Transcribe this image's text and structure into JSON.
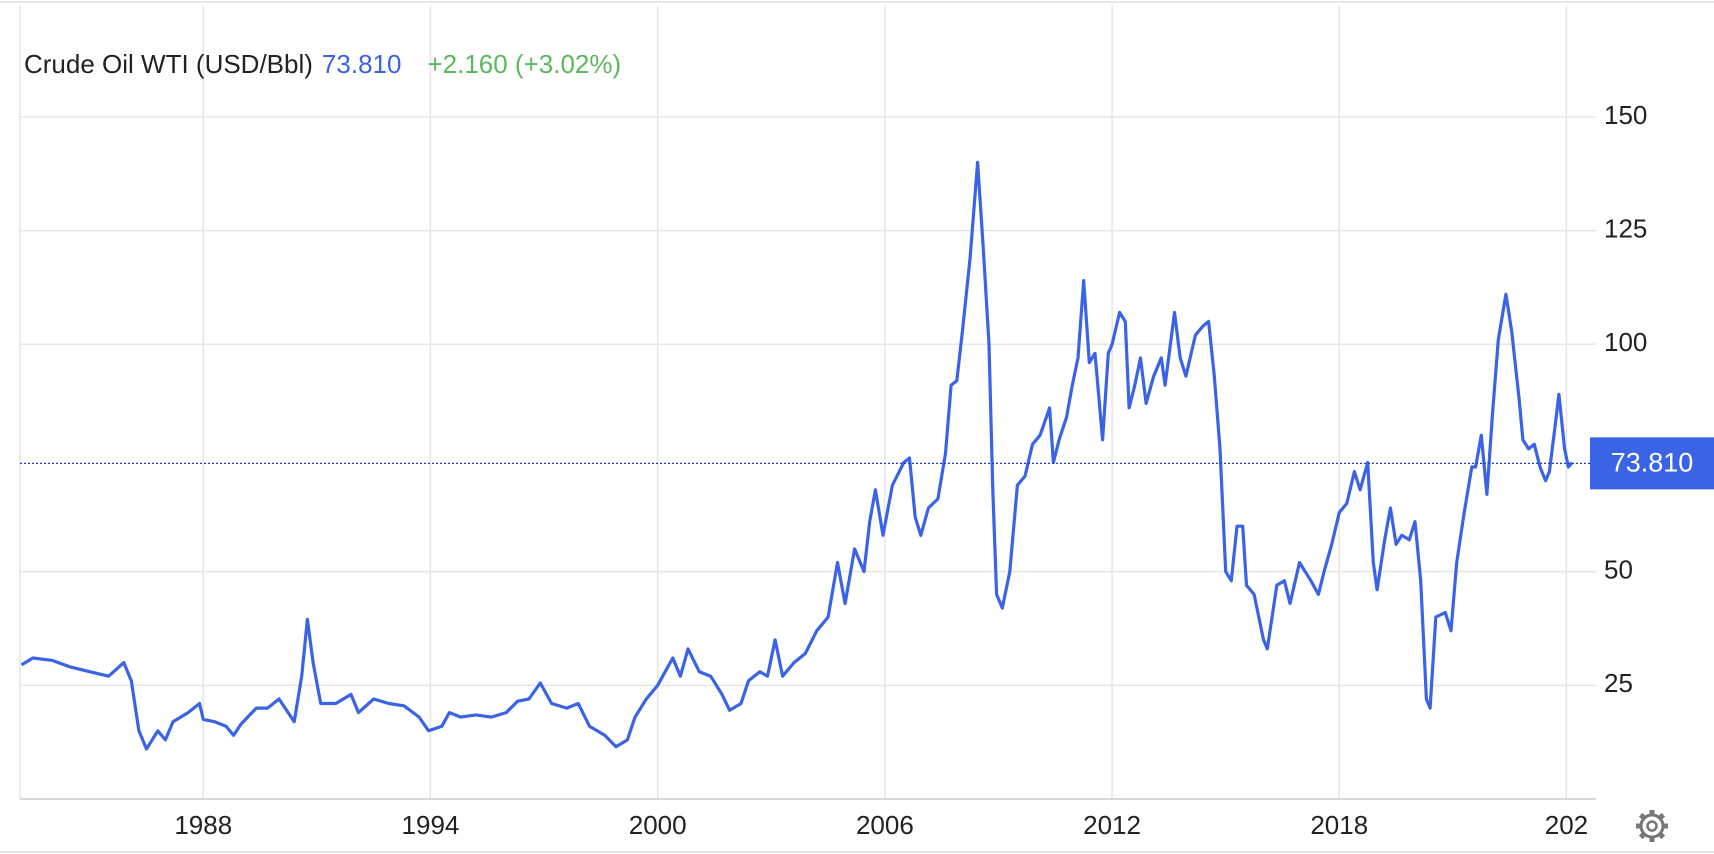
{
  "chart_data": {
    "type": "line",
    "title": "Crude Oil WTI (USD/Bbl)",
    "change": "+2.160 (+3.02%)",
    "last": {
      "value": 73.81,
      "label": "73.810"
    },
    "series": [
      {
        "name": "Crude Oil WTI",
        "color": "#3b63e6",
        "x": [
          1983.2,
          1983.5,
          1984,
          1984.5,
          1985,
          1985.5,
          1985.9,
          1986.1,
          1986.3,
          1986.5,
          1986.8,
          1987.0,
          1987.2,
          1987.6,
          1987.9,
          1988.0,
          1988.3,
          1988.6,
          1988.8,
          1989.0,
          1989.4,
          1989.7,
          1990.0,
          1990.4,
          1990.6,
          1990.75,
          1990.9,
          1991.1,
          1991.5,
          1991.9,
          1992.1,
          1992.5,
          1992.9,
          1993.3,
          1993.7,
          1993.95,
          1994.3,
          1994.5,
          1994.8,
          1995.2,
          1995.6,
          1996.0,
          1996.3,
          1996.6,
          1996.9,
          1997.2,
          1997.6,
          1997.9,
          1998.2,
          1998.6,
          1998.9,
          1999.2,
          1999.4,
          1999.7,
          2000.0,
          2000.2,
          2000.4,
          2000.6,
          2000.8,
          2001.1,
          2001.4,
          2001.7,
          2001.9,
          2002.2,
          2002.4,
          2002.7,
          2002.9,
          2003.1,
          2003.3,
          2003.6,
          2003.9,
          2004.2,
          2004.5,
          2004.75,
          2004.95,
          2005.2,
          2005.45,
          2005.6,
          2005.75,
          2005.95,
          2006.2,
          2006.5,
          2006.65,
          2006.8,
          2006.95,
          2007.15,
          2007.4,
          2007.6,
          2007.75,
          2007.9,
          2008.05,
          2008.25,
          2008.45,
          2008.6,
          2008.75,
          2008.85,
          2008.95,
          2009.1,
          2009.3,
          2009.5,
          2009.7,
          2009.9,
          2010.1,
          2010.35,
          2010.45,
          2010.6,
          2010.8,
          2010.95,
          2011.1,
          2011.25,
          2011.4,
          2011.55,
          2011.75,
          2011.9,
          2012.0,
          2012.2,
          2012.35,
          2012.45,
          2012.6,
          2012.75,
          2012.9,
          2013.1,
          2013.3,
          2013.4,
          2013.65,
          2013.8,
          2013.95,
          2014.2,
          2014.4,
          2014.55,
          2014.7,
          2014.85,
          2015.0,
          2015.15,
          2015.3,
          2015.45,
          2015.55,
          2015.75,
          2016.0,
          2016.1,
          2016.35,
          2016.55,
          2016.7,
          2016.95,
          2017.25,
          2017.45,
          2017.6,
          2017.8,
          2018.0,
          2018.2,
          2018.4,
          2018.55,
          2018.75,
          2018.9,
          2019.0,
          2019.2,
          2019.35,
          2019.5,
          2019.65,
          2019.85,
          2020.0,
          2020.15,
          2020.3,
          2020.4,
          2020.55,
          2020.8,
          2020.95,
          2021.1,
          2021.3,
          2021.5,
          2021.6,
          2021.75,
          2021.9,
          2022.05,
          2022.2,
          2022.4,
          2022.55,
          2022.75,
          2022.85,
          2023.0,
          2023.15,
          2023.3,
          2023.45,
          2023.55,
          2023.7,
          2023.8,
          2023.95,
          2024.05,
          2024.15
        ],
        "values": [
          29.5,
          31,
          30.5,
          29,
          28,
          27,
          30,
          26,
          15,
          11,
          15,
          13,
          17,
          19,
          21,
          17.5,
          17,
          16,
          14,
          16.5,
          20,
          20,
          22,
          17,
          27,
          39.5,
          30,
          21,
          21,
          23,
          19,
          22,
          21,
          20.5,
          18,
          15,
          16,
          19,
          18,
          18.5,
          18,
          19,
          21.5,
          22,
          25.5,
          21,
          20,
          21,
          16,
          14,
          11.5,
          13,
          18,
          22,
          25,
          28,
          31,
          27,
          33,
          28,
          27,
          23,
          19.5,
          21,
          26,
          28,
          27,
          35,
          27,
          30,
          32,
          37,
          40,
          52,
          43,
          55,
          50,
          61,
          68,
          58,
          69,
          74,
          75,
          62,
          58,
          64,
          66,
          76,
          91,
          92,
          103,
          119,
          140,
          121,
          100,
          68,
          45,
          42,
          50,
          69,
          71,
          78,
          80,
          86,
          74,
          79,
          84,
          91,
          97,
          114,
          96,
          98,
          79,
          98,
          100,
          107,
          105,
          86,
          91,
          97,
          87,
          93,
          97,
          91,
          107,
          97,
          93,
          102,
          104,
          105,
          93,
          77,
          50,
          48,
          60,
          60,
          47,
          45,
          35,
          33,
          47,
          48,
          43,
          52,
          48,
          45,
          50,
          56,
          63,
          65,
          72,
          68,
          74,
          52,
          46,
          57,
          64,
          56,
          58,
          57,
          61,
          48,
          22,
          20,
          40,
          41,
          37,
          52,
          63,
          73,
          73,
          80,
          67,
          85,
          101,
          111,
          103,
          88,
          79,
          77,
          78,
          73,
          70,
          72,
          82,
          89,
          77,
          73,
          74
        ]
      }
    ],
    "xlim": [
      1983.16,
      2024.78
    ],
    "xticks": [
      1988,
      1994,
      2000,
      2006,
      2012,
      2018,
      {
        "value": 2024,
        "label": "202"
      }
    ],
    "ylim": [
      0,
      174.5
    ],
    "yticks": [
      25,
      50,
      100,
      125,
      150
    ],
    "grid": true
  }
}
